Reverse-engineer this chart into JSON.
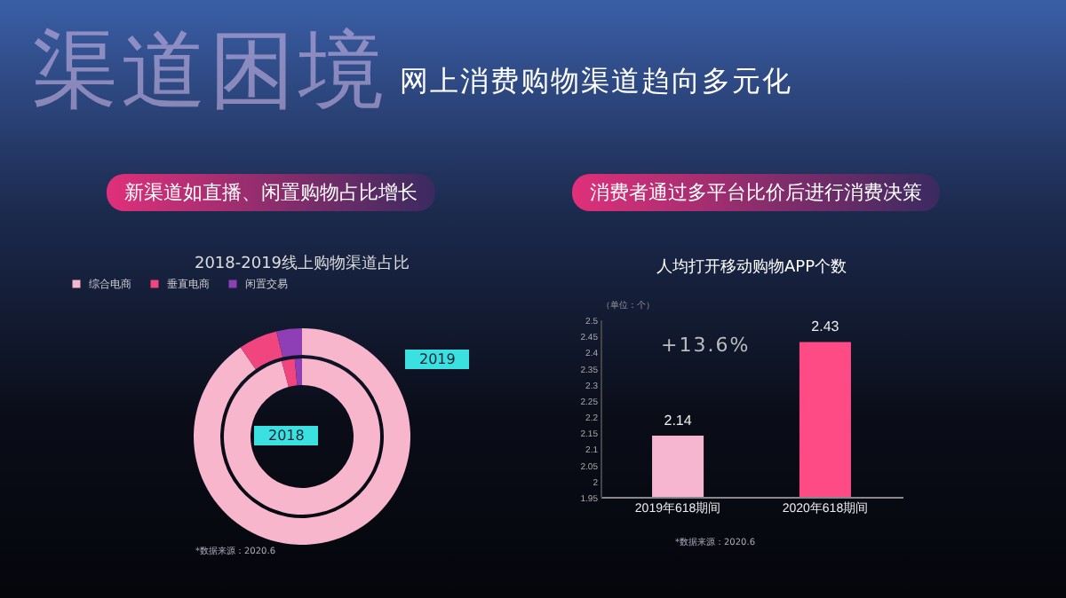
{
  "chart_data": [
    {
      "type": "donut",
      "title": "2018-2019线上购物渠道占比",
      "categories": [
        "综合电商",
        "垂直电商",
        "闲置交易"
      ],
      "colors": [
        "#f7b6cc",
        "#f0457f",
        "#8e3fb5"
      ],
      "series": [
        {
          "name": "2018",
          "values": [
            95.8,
            2.7,
            1.5
          ]
        },
        {
          "name": "2019",
          "values": [
            90.4,
            5.8,
            3.8
          ]
        }
      ],
      "legend": "top",
      "annotations": [
        "渠道困境",
        "网上消费购物渠道趋向多元化",
        "新渠道如直播、闲置购物占比增长",
        "*数据来源：2020.6"
      ]
    },
    {
      "type": "bar",
      "title": "人均打开移动购物APP个数",
      "subtitle": "消费者通过多平台比价后进行消费决策",
      "ylabel": "（单位：个）",
      "categories": [
        "2019年618期间",
        "2020年618期间"
      ],
      "values": [
        2.14,
        2.43
      ],
      "colors": [
        "#f7b6d0",
        "#ff4b85"
      ],
      "ylim": [
        1.95,
        2.5
      ],
      "yticks": [
        1.95,
        2,
        2.05,
        2.1,
        2.15,
        2.2,
        2.25,
        2.3,
        2.35,
        2.4,
        2.45,
        2.5
      ],
      "data_labels": true,
      "grid": false,
      "annotations": [
        "+13.6%",
        "*数据来源：2020.6"
      ]
    }
  ]
}
